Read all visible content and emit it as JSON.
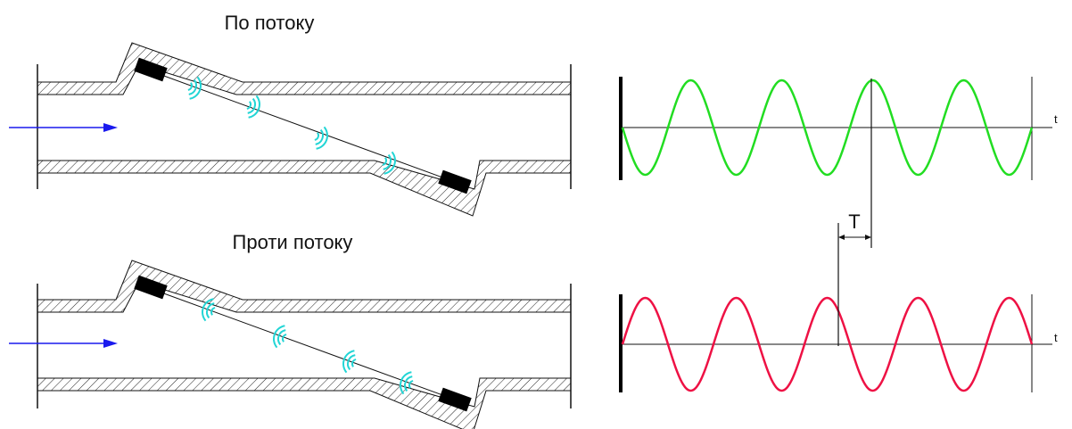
{
  "downstream": {
    "title": "По потоку",
    "wave_color": "#22dd22",
    "wave_phase": "cosine-starting-low",
    "cycles": 4.5,
    "axis_label": "t"
  },
  "upstream": {
    "title": "Проти потоку",
    "wave_color": "#ee1144",
    "wave_phase": "sine-starting-mid",
    "cycles": 4.5,
    "axis_label": "t"
  },
  "time_shift_label": "T",
  "colors": {
    "flow_arrow": "#1a1aee",
    "sound_wave": "#22d5d5",
    "transducer": "#000000",
    "hatch": "#222222"
  },
  "icons": {
    "flow_arrow": "flow-arrow-icon",
    "transducer": "transducer-icon",
    "sound_wave": "sound-wave-icon"
  }
}
